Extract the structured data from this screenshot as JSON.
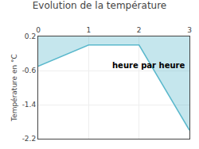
{
  "chart_data": {
    "type": "line",
    "title": "Evolution de la température",
    "ylabel": "Température en °C",
    "annotations": [
      "heure par heure"
    ],
    "x": [
      0,
      1,
      2,
      3
    ],
    "values": [
      -0.5,
      0.0,
      0.0,
      -2.0
    ],
    "fill_to": 0.2,
    "color": "#5ab8cc",
    "xlim": [
      0,
      3
    ],
    "xticks": [
      0,
      1,
      2,
      3
    ],
    "ylim": [
      -2.2,
      0.2
    ],
    "yticks": [
      0.2,
      -0.6,
      -1.4,
      -2.2
    ],
    "grid": true
  }
}
